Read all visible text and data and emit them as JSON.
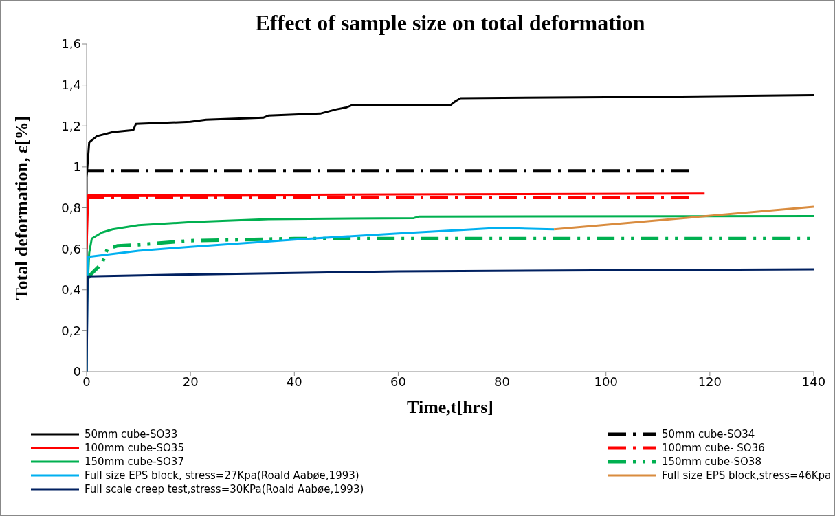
{
  "chart_data": {
    "type": "line",
    "title": "Effect of sample size on total deformation",
    "xlabel": "Time,t[hrs]",
    "ylabel": "Total deformation, ε[%]",
    "xlim": [
      0,
      140
    ],
    "xticks": [
      0,
      20,
      40,
      60,
      80,
      100,
      120,
      140
    ],
    "ylim": [
      0,
      1.6
    ],
    "yticks": [
      {
        "value": 0,
        "label": "0"
      },
      {
        "value": 0.2,
        "label": "0,2"
      },
      {
        "value": 0.4,
        "label": "0,4"
      },
      {
        "value": 0.6,
        "label": "0,6"
      },
      {
        "value": 0.8,
        "label": "0,8"
      },
      {
        "value": 1,
        "label": "1"
      },
      {
        "value": 1.2,
        "label": "1,2"
      },
      {
        "value": 1.4,
        "label": "1,4"
      },
      {
        "value": 1.6,
        "label": "1,6"
      }
    ],
    "grid": false,
    "legend": "bottom",
    "marker": "none",
    "series": [
      {
        "name": "50mm cube-SO33",
        "color": "#000000",
        "line_style": "solid",
        "x": [
          0,
          0,
          0.5,
          2,
          5,
          9,
          9.5,
          20,
          23,
          34,
          35,
          45,
          48,
          50,
          51,
          70,
          71,
          72,
          100,
          140
        ],
        "values": [
          0,
          0.95,
          1.12,
          1.15,
          1.17,
          1.18,
          1.21,
          1.22,
          1.23,
          1.24,
          1.25,
          1.26,
          1.28,
          1.29,
          1.3,
          1.3,
          1.32,
          1.335,
          1.34,
          1.35
        ]
      },
      {
        "name": "50mm cube-SO34",
        "color": "#000000",
        "line_style": "dashed",
        "x": [
          0,
          116
        ],
        "values": [
          0.98,
          0.98
        ]
      },
      {
        "name": "100mm cube-SO35",
        "color": "#ff0000",
        "line_style": "solid",
        "x": [
          0,
          0.3,
          60,
          119
        ],
        "values": [
          0.6,
          0.86,
          0.865,
          0.87
        ]
      },
      {
        "name": "100mm cube- SO36",
        "color": "#ff0000",
        "line_style": "dashed",
        "x": [
          0,
          116
        ],
        "values": [
          0.85,
          0.85
        ]
      },
      {
        "name": "150mm cube-SO37",
        "color": "#00b050",
        "line_style": "solid",
        "x": [
          0,
          0.5,
          1,
          3,
          5,
          10,
          20,
          35,
          63,
          64,
          140
        ],
        "values": [
          0.3,
          0.58,
          0.65,
          0.68,
          0.695,
          0.715,
          0.73,
          0.745,
          0.75,
          0.757,
          0.76
        ]
      },
      {
        "name": "150mm cube-SO38",
        "color": "#00b050",
        "line_style": "dotted",
        "x": [
          0,
          1,
          3,
          4,
          6,
          10,
          20,
          40,
          140
        ],
        "values": [
          0.45,
          0.48,
          0.53,
          0.6,
          0.615,
          0.62,
          0.64,
          0.65,
          0.65
        ]
      },
      {
        "name": "Full size EPS block, stress=27Kpa(Roald Aabøe,1993)",
        "color": "#00b0f0",
        "line_style": "solid",
        "x": [
          0,
          0.2,
          10,
          20,
          40,
          60,
          78,
          82,
          90
        ],
        "values": [
          0,
          0.56,
          0.59,
          0.61,
          0.645,
          0.675,
          0.7,
          0.7,
          0.695
        ]
      },
      {
        "name": "Full size EPS block,stress=46Kpa",
        "color": "#d98c3f",
        "line_style": "solid",
        "x": [
          90,
          140
        ],
        "values": [
          0.695,
          0.805
        ]
      },
      {
        "name": "Full scale creep test,stress=30KPa(Roald Aabøe,1993)",
        "color": "#002060",
        "line_style": "solid",
        "x": [
          0,
          0.2,
          20,
          60,
          140
        ],
        "values": [
          0,
          0.465,
          0.475,
          0.49,
          0.5
        ]
      }
    ]
  }
}
